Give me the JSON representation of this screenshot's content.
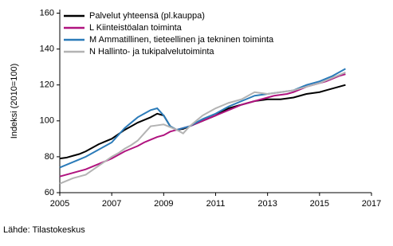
{
  "chart_data": {
    "type": "line",
    "y_label": "Indeksi (2010=100)",
    "source": "Lähde: Tilastokeskus",
    "x": [
      2005,
      2005.25,
      2005.5,
      2005.75,
      2006,
      2006.25,
      2006.5,
      2006.75,
      2007,
      2007.25,
      2007.5,
      2007.75,
      2008,
      2008.25,
      2008.5,
      2008.75,
      2009,
      2009.25,
      2009.5,
      2009.75,
      2010,
      2010.25,
      2010.5,
      2010.75,
      2011,
      2011.25,
      2011.5,
      2011.75,
      2012,
      2012.25,
      2012.5,
      2012.75,
      2013,
      2013.25,
      2013.5,
      2013.75,
      2014,
      2014.25,
      2014.5,
      2014.75,
      2015,
      2015.25,
      2015.5,
      2015.75,
      2016
    ],
    "series": [
      {
        "name": "Palvelut yhteensä (pl.kauppa)",
        "color": "#000000",
        "values": [
          79,
          79.5,
          80.5,
          81.5,
          83,
          85,
          87,
          88.5,
          90,
          92.5,
          95,
          97,
          99,
          100.5,
          102,
          104,
          103,
          97,
          95,
          95.5,
          97,
          98.5,
          100,
          101.5,
          103,
          105,
          107,
          108,
          109,
          110,
          111,
          111.5,
          112,
          112,
          112,
          112.5,
          113,
          114,
          115,
          115.5,
          116,
          117,
          118,
          119,
          120
        ]
      },
      {
        "name": "L Kiinteistöalan toiminta",
        "color": "#b0137f",
        "values": [
          69,
          70,
          71,
          72,
          73,
          74.5,
          76,
          77.5,
          79,
          81,
          83,
          84.5,
          86,
          88,
          89.5,
          91,
          92,
          94,
          95,
          96,
          97,
          98.5,
          100,
          101.5,
          103,
          104.5,
          106,
          107.5,
          109,
          110,
          111,
          112,
          113,
          114,
          114.5,
          115,
          116,
          117.5,
          119,
          120,
          121,
          122,
          123.5,
          125,
          126
        ]
      },
      {
        "name": "M Ammatillinen, tieteellinen ja tekninen toiminta",
        "color": "#2b7bb9",
        "values": [
          74,
          75.5,
          77,
          78.5,
          80,
          82,
          84,
          86,
          88,
          92,
          96,
          99,
          102,
          104,
          106,
          107,
          103,
          97,
          95,
          96,
          97,
          99,
          101,
          102.5,
          104,
          106,
          108,
          109.5,
          111,
          112.5,
          114,
          114.5,
          115,
          115.5,
          116,
          116.5,
          117,
          118.5,
          120,
          121,
          122,
          123.5,
          125,
          127,
          129
        ]
      },
      {
        "name": "N Hallinto- ja tukipalvelutoiminta",
        "color": "#b3b3b3",
        "values": [
          65,
          66.5,
          68,
          69,
          70,
          72.5,
          75,
          77.5,
          80,
          82,
          84.5,
          86.5,
          89,
          93,
          97,
          97.5,
          98,
          96.5,
          95,
          93,
          97,
          100,
          103,
          105,
          107,
          108.5,
          110,
          111,
          112,
          114,
          116,
          115.5,
          115,
          115.5,
          116,
          116.5,
          117,
          118,
          119,
          120,
          121,
          122.5,
          124,
          125.5,
          127
        ]
      }
    ],
    "xlim": [
      2005,
      2017
    ],
    "xticks": [
      2005,
      2007,
      2009,
      2011,
      2013,
      2015,
      2017
    ],
    "ylim": [
      60,
      162
    ],
    "yticks": [
      60,
      80,
      100,
      120,
      140,
      160
    ]
  }
}
